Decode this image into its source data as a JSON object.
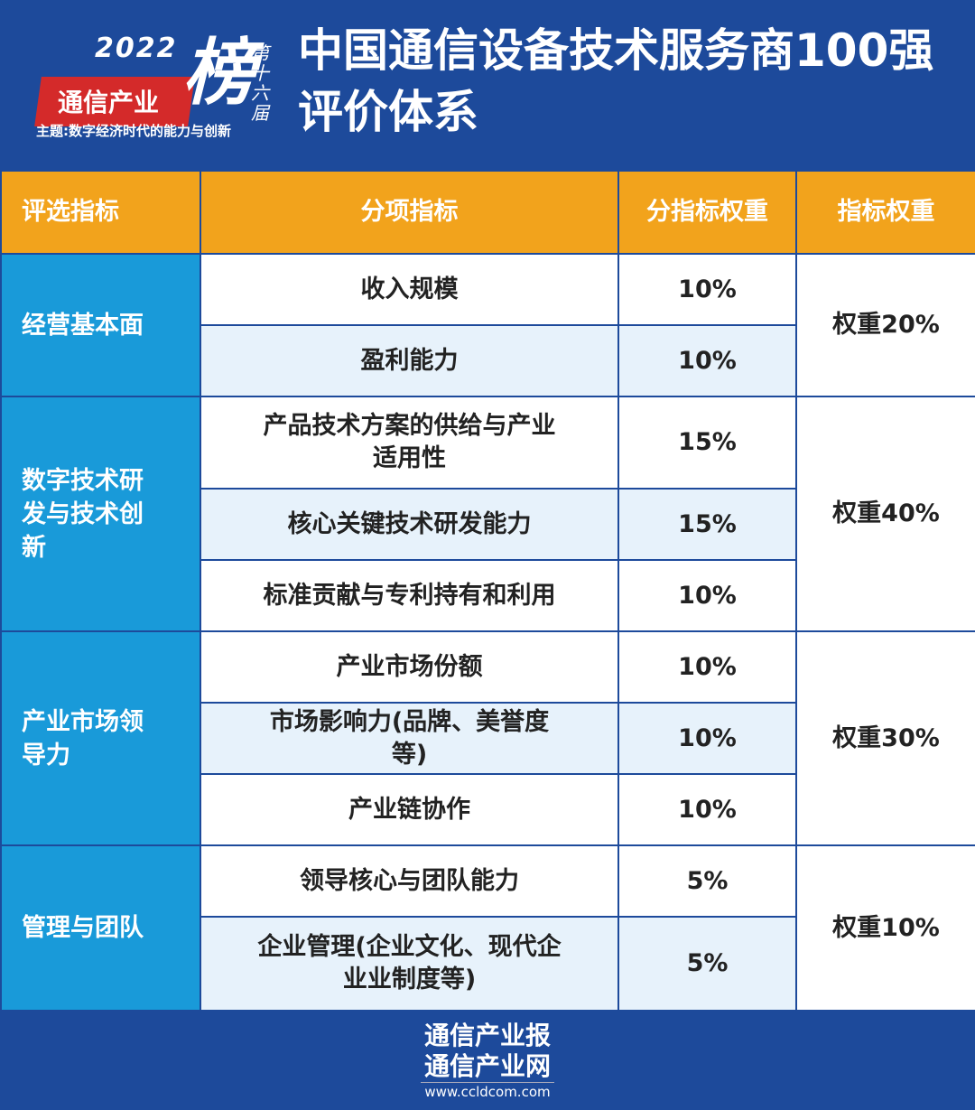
{
  "logo": {
    "year": "2022",
    "name": "通信产业",
    "bang": "榜",
    "edition": "第十六届",
    "theme": "主题:数字经济时代的能力与创新"
  },
  "title": {
    "line1": "中国通信设备技术服务商100强",
    "line2": "评价体系"
  },
  "colors": {
    "header_bg": "#1d4a9b",
    "column_header": "#f2a31c",
    "category": "#199ad9",
    "row_alt": "#e7f2fb"
  },
  "table": {
    "headers": [
      "评选指标",
      "分项指标",
      "分指标权重",
      "指标权重"
    ],
    "groups": [
      {
        "category": "经营基本面",
        "weight": "权重20%",
        "items": [
          {
            "name": "收入规模",
            "weight": "10%"
          },
          {
            "name": "盈利能力",
            "weight": "10%"
          }
        ]
      },
      {
        "category": "数字技术研发与技术创新",
        "weight": "权重40%",
        "items": [
          {
            "name": "产品技术方案的供给与产业适用性",
            "weight": "15%"
          },
          {
            "name": "核心关键技术研发能力",
            "weight": "15%"
          },
          {
            "name": "标准贡献与专利持有和利用",
            "weight": "10%"
          }
        ]
      },
      {
        "category": "产业市场领导力",
        "weight": "权重30%",
        "items": [
          {
            "name": "产业市场份额",
            "weight": "10%"
          },
          {
            "name": "市场影响力(品牌、美誉度等)",
            "weight": "10%"
          },
          {
            "name": "产业链协作",
            "weight": "10%"
          }
        ]
      },
      {
        "category": "管理与团队",
        "weight": "权重10%",
        "items": [
          {
            "name": "领导核心与团队能力",
            "weight": "5%"
          },
          {
            "name": "企业管理(企业文化、现代企业业制度等)",
            "weight": "5%"
          }
        ]
      }
    ]
  },
  "footer": {
    "line1": "通信产业报",
    "line2": "通信产业网",
    "url": "www.ccldcom.com"
  }
}
